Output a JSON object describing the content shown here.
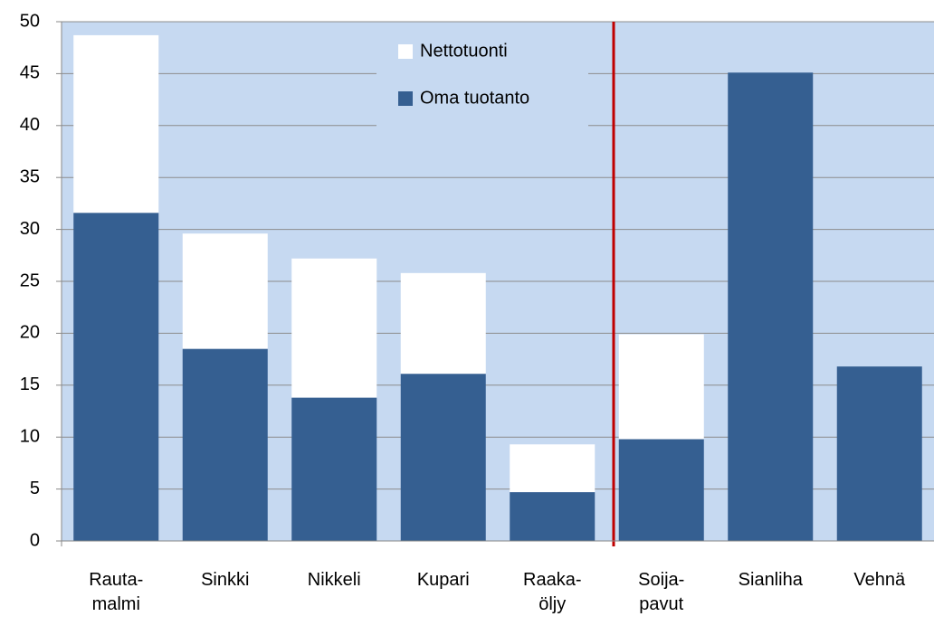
{
  "chart_data": {
    "type": "stacked_bar",
    "categories": [
      "Rauta-\nmalmi",
      "Sinkki",
      "Nikkeli",
      "Kupari",
      "Raaka-\nöljy",
      "Soija-\npavut",
      "Sianliha",
      "Vehnä"
    ],
    "series": [
      {
        "name": "Oma tuotanto",
        "color": "#355f91",
        "values": [
          31.6,
          18.5,
          13.8,
          16.1,
          4.7,
          9.8,
          45.1,
          16.8
        ]
      },
      {
        "name": "Nettotuonti",
        "color": "#ffffff",
        "values": [
          17.1,
          11.1,
          13.4,
          9.7,
          4.6,
          10.1,
          0,
          0
        ]
      }
    ],
    "ylim": [
      0,
      50
    ],
    "yticks": [
      0,
      5,
      10,
      15,
      20,
      25,
      30,
      35,
      40,
      45,
      50
    ],
    "grid": true
  }
}
